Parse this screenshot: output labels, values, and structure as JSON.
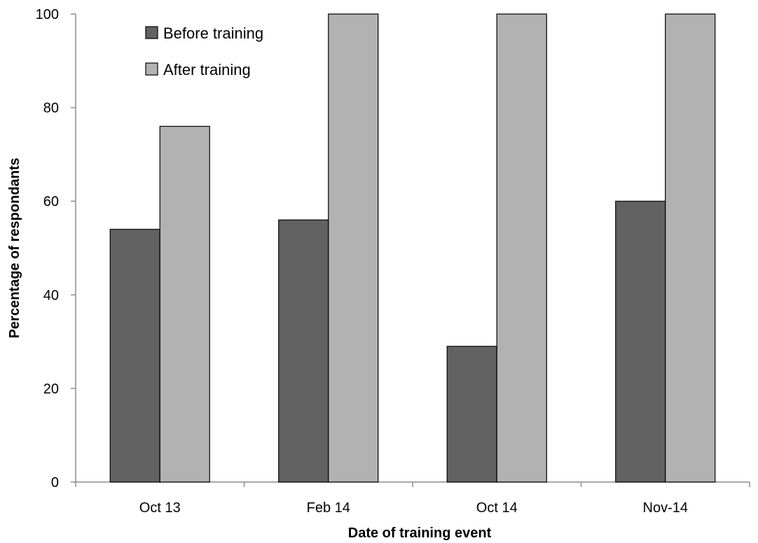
{
  "chart_data": {
    "type": "bar",
    "categories": [
      "Oct 13",
      "Feb 14",
      "Oct 14",
      "Nov-14"
    ],
    "series": [
      {
        "name": "Before training",
        "values": [
          54,
          56,
          29,
          60
        ],
        "color": "#626262"
      },
      {
        "name": "After training",
        "values": [
          76,
          100,
          100,
          100
        ],
        "color": "#b2b2b2"
      }
    ],
    "xlabel": "Date of training event",
    "ylabel": "Percentage of respondants",
    "ylim": [
      0,
      100
    ],
    "yticks": [
      0,
      20,
      40,
      60,
      80,
      100
    ],
    "grid": false,
    "legend_position": "top-left"
  }
}
